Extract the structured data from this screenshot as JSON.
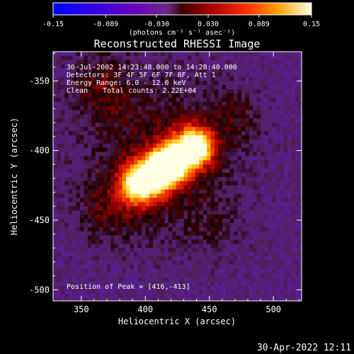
{
  "chart_data": {
    "type": "heatmap",
    "title": "Reconstructed RHESSI Image",
    "xlabel": "Heliocentric X (arcsec)",
    "ylabel": "Heliocentric Y (arcsec)",
    "xlim": [
      328,
      522
    ],
    "ylim": [
      -508,
      -329
    ],
    "x_ticks": [
      "350",
      "400",
      "450",
      "500"
    ],
    "x_tick_values": [
      350,
      400,
      450,
      500
    ],
    "y_ticks": [
      "-350",
      "-400",
      "-450",
      "-500"
    ],
    "y_tick_values": [
      -350,
      -400,
      -450,
      -500
    ],
    "colorbar": {
      "range": [
        -0.15,
        0.15
      ],
      "tick_labels": [
        "-0.15",
        "-0.089",
        "-0.030",
        "0.030",
        "0.089",
        "0.15"
      ],
      "tick_values": [
        -0.15,
        -0.089,
        -0.03,
        0.03,
        0.089,
        0.15
      ],
      "unit_label": "(photons cm⁻² s⁻¹ asec⁻²)",
      "colors": [
        "#0000ff",
        "#5a00c0",
        "#6a2a9a",
        "#7a0000",
        "#e00000",
        "#ff7000",
        "#ffd000",
        "#ffffe0"
      ]
    },
    "annotations": {
      "time": "30-Jul-2002 14:23:48.000 to 14:28:40.000",
      "detectors": "Detectors: 3F 4F 5F 6F 7F 8F, Att 1",
      "energy": "Energy Range: 6.0 - 12.0 keV",
      "method": "Clean",
      "counts": "Total counts: 2.22E+04",
      "peak": "Position of Peak = [416,-413]"
    },
    "peak_position": [
      416,
      -413
    ],
    "peak_value": 0.15,
    "sources": [
      {
        "kind": "ridge",
        "from": [
          395,
          -422
        ],
        "to": [
          440,
          -398
        ],
        "width": 9,
        "value": 0.14
      },
      {
        "kind": "blob",
        "center": [
          416,
          -413
        ],
        "sigma": 9,
        "value": 0.15
      },
      {
        "kind": "blob",
        "center": [
          435,
          -398
        ],
        "sigma": 12,
        "value": 0.08
      },
      {
        "kind": "blob",
        "center": [
          400,
          -425
        ],
        "sigma": 12,
        "value": 0.08
      },
      {
        "kind": "halo",
        "center": [
          412,
          -405
        ],
        "sigma": 38,
        "value": 0.045
      },
      {
        "kind": "blob",
        "center": [
          365,
          -355
        ],
        "sigma": 18,
        "value": 0.04
      },
      {
        "kind": "blob",
        "center": [
          370,
          -440
        ],
        "sigma": 16,
        "value": 0.035
      },
      {
        "kind": "blob",
        "center": [
          470,
          -375
        ],
        "sigma": 14,
        "value": 0.03
      },
      {
        "kind": "blob",
        "center": [
          455,
          -455
        ],
        "sigma": 14,
        "value": 0.02
      }
    ],
    "background_value": -0.035
  },
  "footer": {
    "timestamp": "30-Apr-2022 12:11"
  }
}
